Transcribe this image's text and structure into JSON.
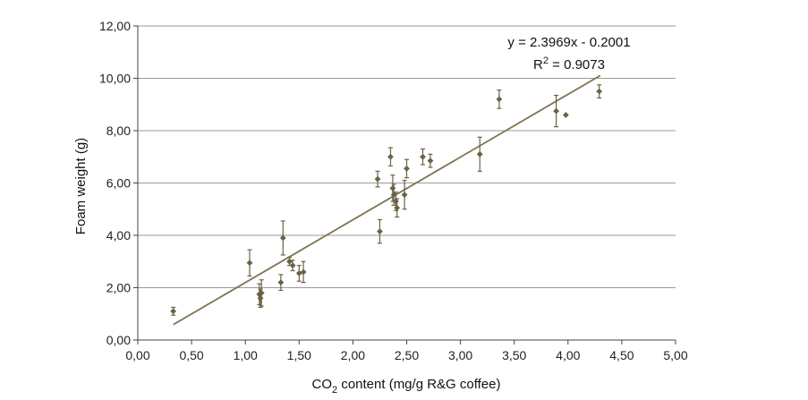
{
  "chart_data": {
    "type": "scatter",
    "title": "",
    "xlabel_main": "CO",
    "xlabel_sub": "2",
    "xlabel_rest": " content (mg/g R&G coffee)",
    "ylabel": "Foam weight (g)",
    "xlim": [
      0,
      5
    ],
    "ylim": [
      0,
      12
    ],
    "x_ticks": [
      0,
      0.5,
      1,
      1.5,
      2,
      2.5,
      3,
      3.5,
      4,
      4.5,
      5
    ],
    "x_tick_labels": [
      "0,00",
      "0,50",
      "1,00",
      "1,50",
      "2,00",
      "2,50",
      "3,00",
      "3,50",
      "4,00",
      "4,50",
      "5,00"
    ],
    "y_ticks": [
      0,
      2,
      4,
      6,
      8,
      10,
      12
    ],
    "y_tick_labels": [
      "0,00",
      "2,00",
      "4,00",
      "6,00",
      "8,00",
      "10,00",
      "12,00"
    ],
    "grid": "horizontal",
    "colors": {
      "points": "#6b6245",
      "trendline": "#7f7352",
      "grid": "#9a9a9a",
      "axis": "#444444"
    },
    "trendline": {
      "slope": 2.3969,
      "intercept": -0.2001,
      "x_range": [
        0.33,
        4.3
      ],
      "equation_label": "y = 2.3969x - 0.2001",
      "r2_label_prefix": "R",
      "r2_label_sup": "2",
      "r2_label_rest": " = 0.9073"
    },
    "points": [
      {
        "x": 0.33,
        "y": 1.1,
        "err": 0.15
      },
      {
        "x": 1.04,
        "y": 2.95,
        "err": 0.5
      },
      {
        "x": 1.13,
        "y": 1.75,
        "err": 0.4
      },
      {
        "x": 1.14,
        "y": 1.6,
        "err": 0.35
      },
      {
        "x": 1.15,
        "y": 1.8,
        "err": 0.5
      },
      {
        "x": 1.33,
        "y": 2.2,
        "err": 0.3
      },
      {
        "x": 1.35,
        "y": 3.9,
        "err": 0.65
      },
      {
        "x": 1.41,
        "y": 3.0,
        "err": 0.15
      },
      {
        "x": 1.44,
        "y": 2.85,
        "err": 0.2
      },
      {
        "x": 1.5,
        "y": 2.55,
        "err": 0.3
      },
      {
        "x": 1.54,
        "y": 2.6,
        "err": 0.4
      },
      {
        "x": 2.23,
        "y": 6.15,
        "err": 0.3
      },
      {
        "x": 2.25,
        "y": 4.15,
        "err": 0.45
      },
      {
        "x": 2.35,
        "y": 7.0,
        "err": 0.35
      },
      {
        "x": 2.37,
        "y": 5.8,
        "err": 0.5
      },
      {
        "x": 2.38,
        "y": 5.55,
        "err": 0.4
      },
      {
        "x": 2.4,
        "y": 5.3,
        "err": 0.35
      },
      {
        "x": 2.41,
        "y": 5.05,
        "err": 0.35
      },
      {
        "x": 2.48,
        "y": 5.55,
        "err": 0.55
      },
      {
        "x": 2.5,
        "y": 6.55,
        "err": 0.35
      },
      {
        "x": 2.65,
        "y": 7.0,
        "err": 0.3
      },
      {
        "x": 2.72,
        "y": 6.85,
        "err": 0.25
      },
      {
        "x": 3.18,
        "y": 7.1,
        "err": 0.65
      },
      {
        "x": 3.36,
        "y": 9.2,
        "err": 0.35
      },
      {
        "x": 3.89,
        "y": 8.75,
        "err": 0.6
      },
      {
        "x": 3.98,
        "y": 8.6,
        "err": 0
      },
      {
        "x": 4.29,
        "y": 9.5,
        "err": 0.25
      }
    ]
  }
}
